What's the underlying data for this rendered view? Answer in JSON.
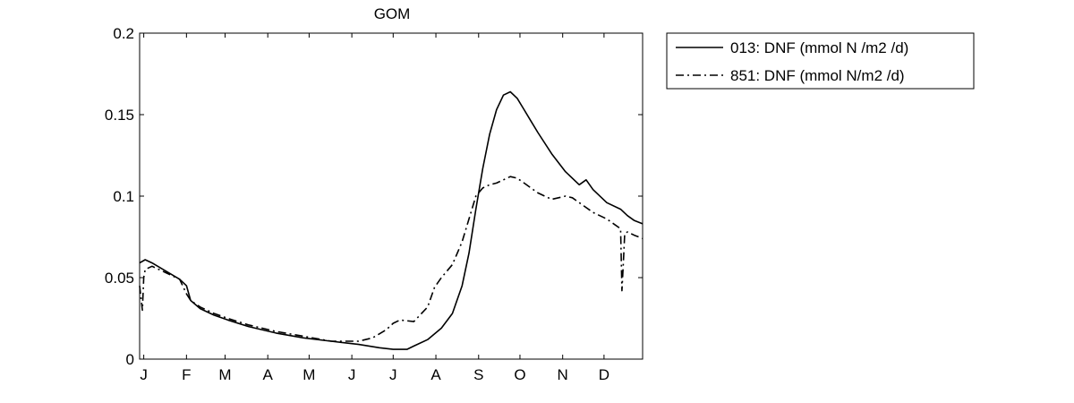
{
  "chart_data": {
    "type": "line",
    "title": "GOM",
    "xlabel": "",
    "ylabel": "",
    "xlim": [
      1,
      366
    ],
    "ylim": [
      0,
      0.2
    ],
    "grid": false,
    "legend_position": "outside-top-right",
    "x_ticks": [
      {
        "day": 4,
        "label": "J"
      },
      {
        "day": 35,
        "label": "F"
      },
      {
        "day": 63,
        "label": "M"
      },
      {
        "day": 94,
        "label": "A"
      },
      {
        "day": 124,
        "label": "M"
      },
      {
        "day": 155,
        "label": "J"
      },
      {
        "day": 185,
        "label": "J"
      },
      {
        "day": 216,
        "label": "A"
      },
      {
        "day": 247,
        "label": "S"
      },
      {
        "day": 277,
        "label": "O"
      },
      {
        "day": 308,
        "label": "N"
      },
      {
        "day": 338,
        "label": "D"
      }
    ],
    "y_ticks": [
      {
        "value": 0,
        "label": "0"
      },
      {
        "value": 0.05,
        "label": "0.05"
      },
      {
        "value": 0.1,
        "label": "0.1"
      },
      {
        "value": 0.15,
        "label": "0.15"
      },
      {
        "value": 0.2,
        "label": "0.2"
      }
    ],
    "series": [
      {
        "name": "013: DNF (mmol N /m2 /d)",
        "style": "solid",
        "x": [
          1,
          5,
          10,
          20,
          30,
          35,
          38,
          45,
          55,
          65,
          80,
          100,
          120,
          140,
          160,
          175,
          185,
          195,
          200,
          210,
          220,
          228,
          235,
          240,
          245,
          250,
          255,
          260,
          265,
          270,
          275,
          280,
          285,
          290,
          300,
          310,
          320,
          325,
          330,
          340,
          350,
          355,
          360,
          366
        ],
        "y": [
          0.059,
          0.061,
          0.059,
          0.054,
          0.049,
          0.045,
          0.036,
          0.031,
          0.027,
          0.024,
          0.02,
          0.016,
          0.013,
          0.011,
          0.009,
          0.007,
          0.006,
          0.006,
          0.008,
          0.012,
          0.019,
          0.028,
          0.045,
          0.065,
          0.092,
          0.117,
          0.138,
          0.153,
          0.162,
          0.164,
          0.16,
          0.153,
          0.146,
          0.139,
          0.126,
          0.115,
          0.107,
          0.11,
          0.104,
          0.096,
          0.092,
          0.088,
          0.085,
          0.083
        ]
      },
      {
        "name": "851: DNF (mmol N/m2 /d)",
        "style": "dashdot",
        "x": [
          1,
          3,
          4,
          5,
          10,
          20,
          30,
          35,
          38,
          45,
          55,
          65,
          80,
          100,
          120,
          140,
          160,
          170,
          180,
          185,
          190,
          200,
          210,
          215,
          220,
          228,
          235,
          240,
          245,
          250,
          255,
          260,
          265,
          270,
          275,
          280,
          285,
          290,
          300,
          310,
          315,
          320,
          330,
          340,
          350,
          351,
          352,
          353,
          355,
          360,
          366
        ],
        "y": [
          0.045,
          0.03,
          0.05,
          0.055,
          0.057,
          0.053,
          0.049,
          0.04,
          0.036,
          0.032,
          0.028,
          0.025,
          0.021,
          0.017,
          0.014,
          0.011,
          0.011,
          0.013,
          0.018,
          0.022,
          0.024,
          0.023,
          0.032,
          0.044,
          0.05,
          0.058,
          0.072,
          0.086,
          0.1,
          0.105,
          0.107,
          0.108,
          0.11,
          0.112,
          0.111,
          0.108,
          0.105,
          0.102,
          0.098,
          0.1,
          0.099,
          0.096,
          0.09,
          0.086,
          0.08,
          0.042,
          0.058,
          0.077,
          0.078,
          0.076,
          0.074
        ]
      }
    ]
  }
}
